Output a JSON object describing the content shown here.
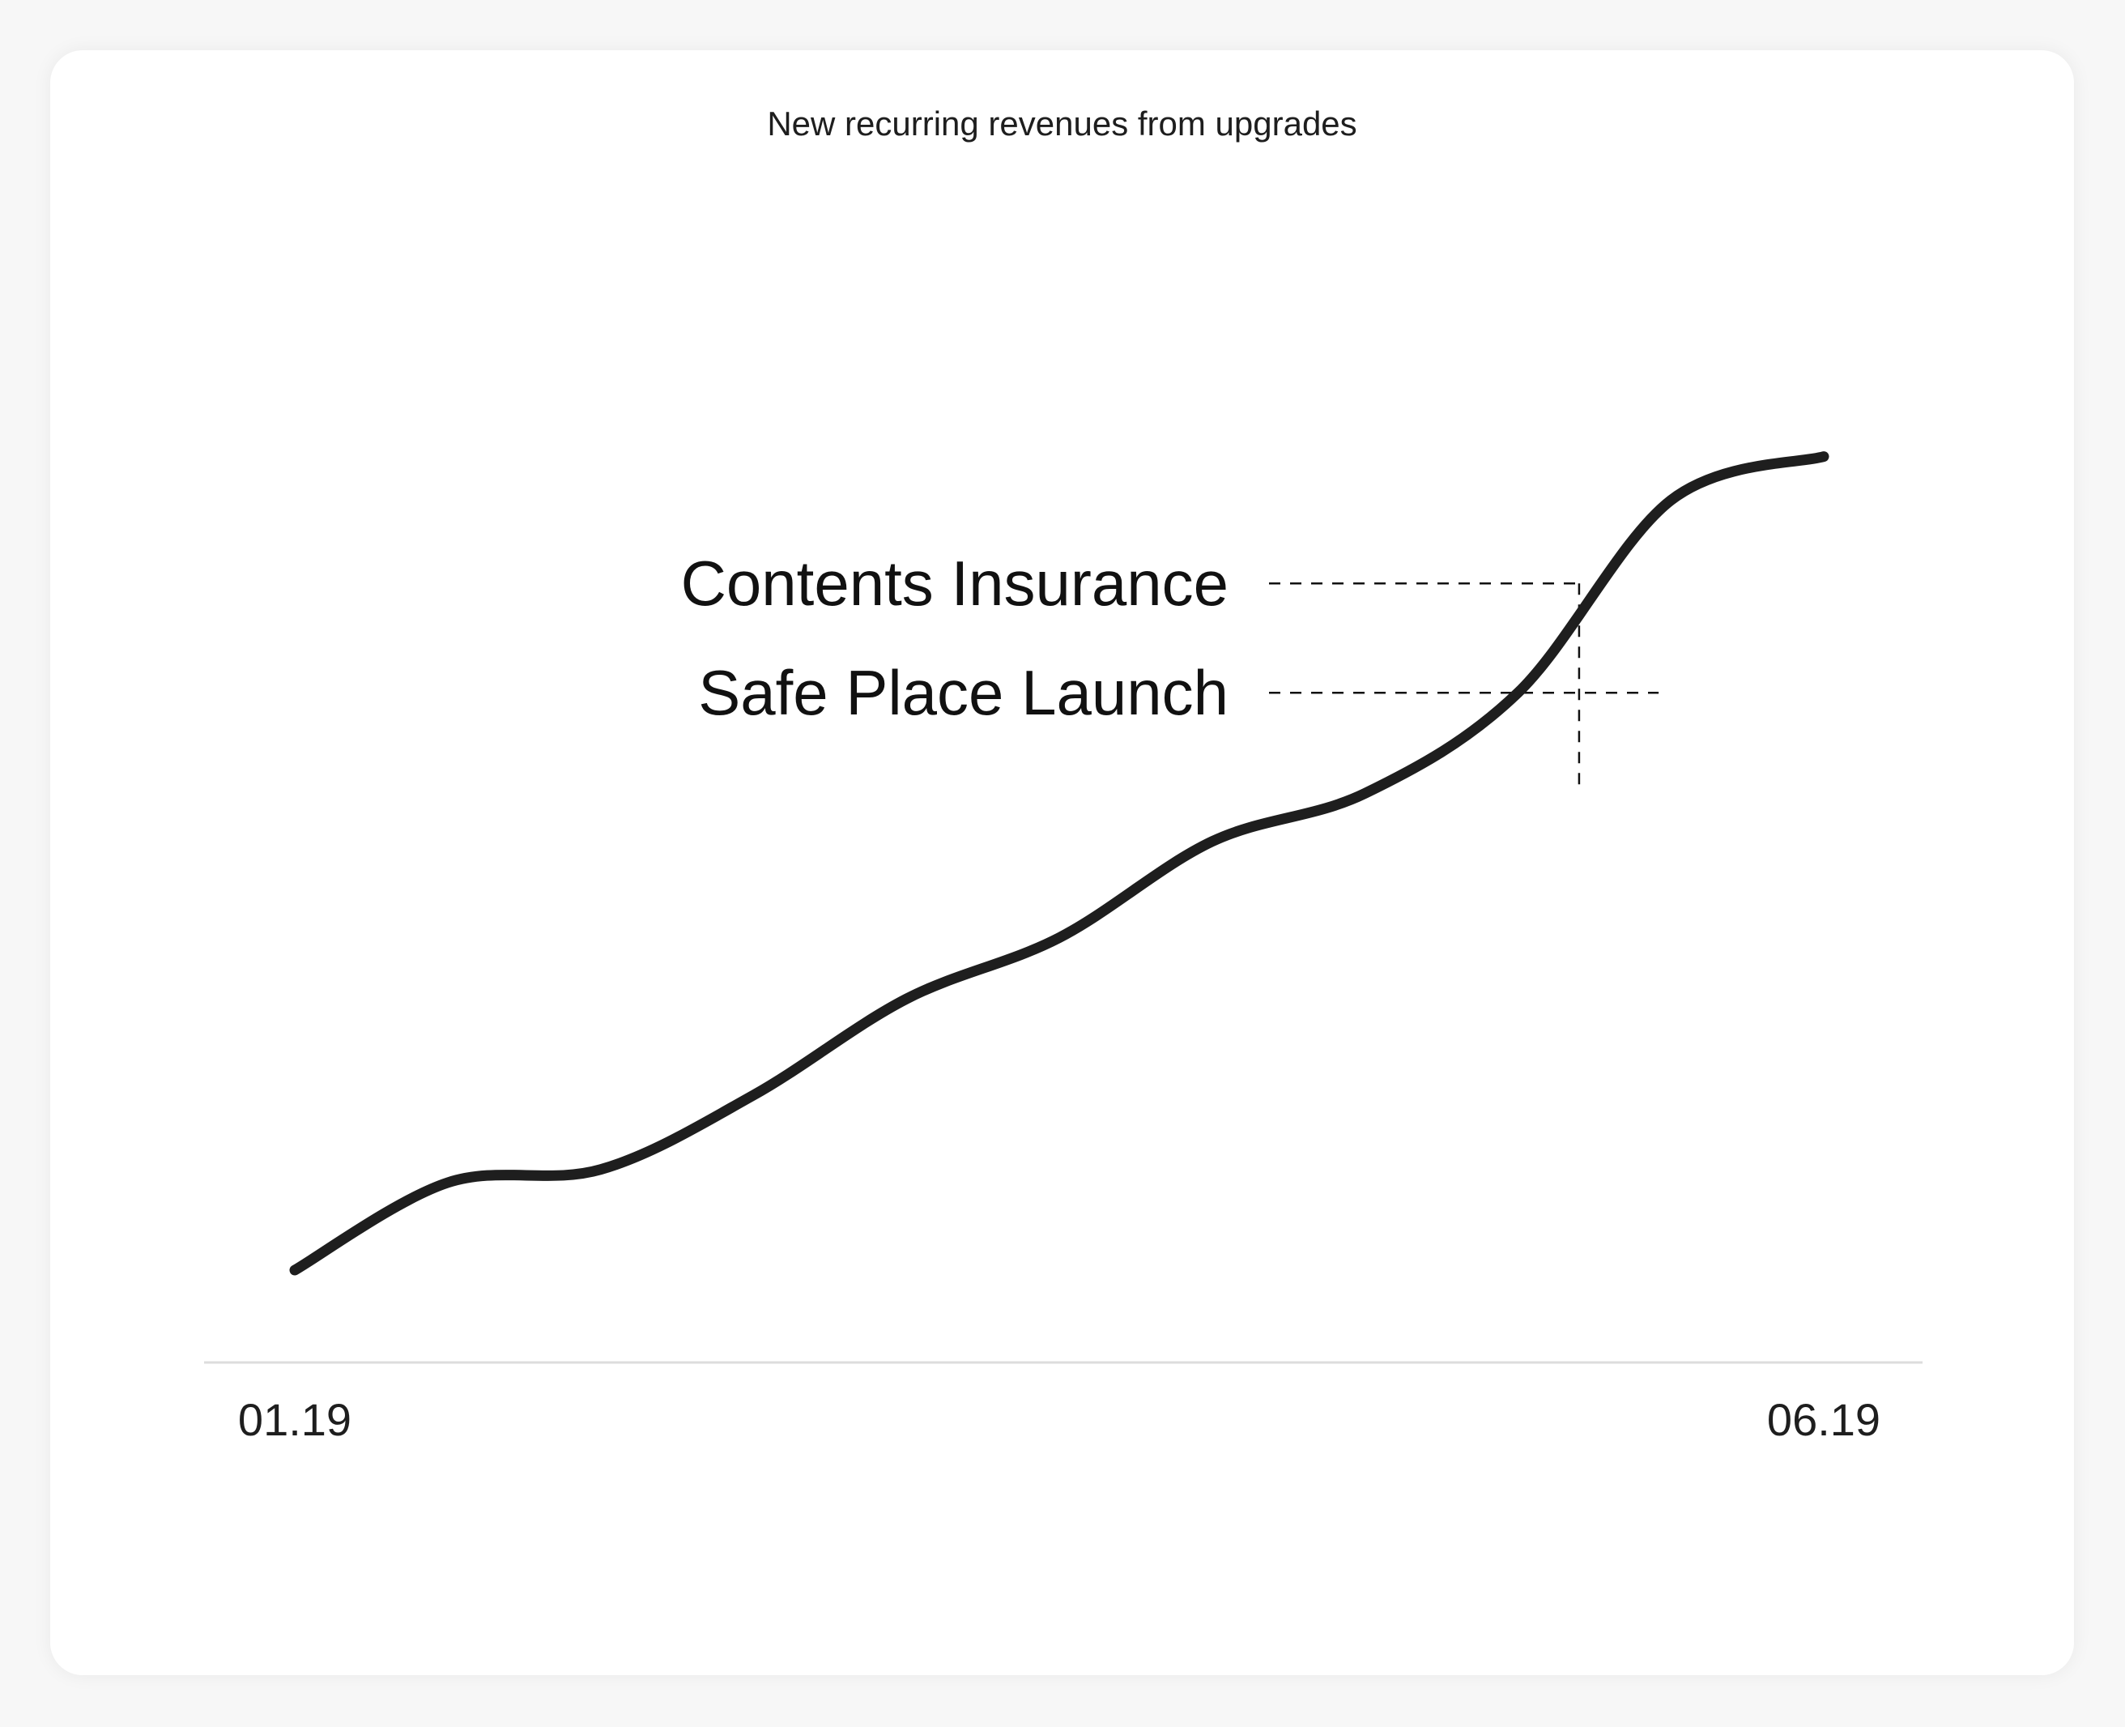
{
  "chart_data": {
    "type": "line",
    "title": "New recurring revenues from upgrades",
    "xlabel": "",
    "ylabel": "",
    "x_tick_labels": [
      "01.19",
      "06.19"
    ],
    "x": [
      0,
      0.5,
      1,
      1.5,
      2,
      2.5,
      3,
      3.5,
      4,
      4.5,
      5
    ],
    "series": [
      {
        "values": [
          5,
          15,
          16.5,
          25,
          36,
          43,
          54,
          59.5,
          71,
          93,
          98
        ]
      }
    ],
    "xlim": [
      0,
      5
    ],
    "ylim": [
      0,
      100
    ],
    "grid": false,
    "legend": "none",
    "annotations": [
      {
        "label": "Contents Insurance",
        "x": 4.2,
        "y": 83.5
      },
      {
        "label": "Safe Place Launch",
        "x": 4.46,
        "y": 71
      }
    ],
    "colors": {
      "line": "#1e1e1e",
      "axis": "#dddddd",
      "annotation": "#111111"
    }
  }
}
